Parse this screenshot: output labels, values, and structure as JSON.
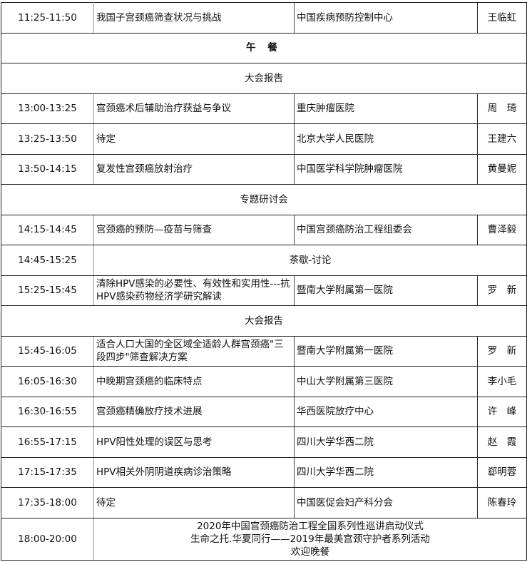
{
  "rows": [
    {
      "type": "talk",
      "time": "11:25-11:50",
      "topic": "我国子宫颈癌筛查状况与挑战",
      "institution": "中国疾病预防控制中心",
      "speaker": "王临虹"
    },
    {
      "type": "section",
      "label": "午 餐",
      "bold": true
    },
    {
      "type": "section",
      "label": "大会报告"
    },
    {
      "type": "talk",
      "time": "13:00-13:25",
      "topic": "宫颈癌术后辅助治疗获益与争议",
      "institution": "重庆肿瘤医院",
      "speaker": "周　琦"
    },
    {
      "type": "talk",
      "time": "13:25-13:50",
      "topic": "待定",
      "institution": "北京大学人民医院",
      "speaker": "王建六"
    },
    {
      "type": "talk",
      "time": "13:50-14:15",
      "topic": "复发性宫颈癌放射治疗",
      "institution": "中国医学科学院肿瘤医院",
      "speaker": "黄曼妮"
    },
    {
      "type": "section",
      "label": "专题研讨会"
    },
    {
      "type": "talk",
      "time": "14:15-14:45",
      "topic": "宫颈癌的预防—疫苗与筛查",
      "institution": "中国宫颈癌防治工程组委会",
      "speaker": "曹泽毅"
    },
    {
      "type": "break",
      "time": "14:45-15:25",
      "label": "茶歇-讨论"
    },
    {
      "type": "talk",
      "time": "15:25-15:45",
      "topic": "清除HPV感染的必要性、有效性和实用性---抗HPV感染药物经济学研究解读",
      "institution": "暨南大学附属第一医院",
      "speaker": "罗　新"
    },
    {
      "type": "section",
      "label": "大会报告"
    },
    {
      "type": "talk",
      "time": "15:45-16:05",
      "topic": "适合人口大国的全区域全适龄人群宫颈癌\"三段四步\"筛查解决方案",
      "institution": "暨南大学附属第一医院",
      "speaker": "罗　新"
    },
    {
      "type": "talk",
      "time": "16:05-16:30",
      "topic": "中晚期宫颈癌的临床特点",
      "institution": "中山大学附属第三医院",
      "speaker": "李小毛"
    },
    {
      "type": "talk",
      "time": "16:30-16:55",
      "topic": "宫颈癌精确放疗技术进展",
      "institution": "华西医院放疗中心",
      "speaker": "许　峰"
    },
    {
      "type": "talk",
      "time": "16:55-17:15",
      "topic": "HPV阳性处理的误区与思考",
      "institution": "四川大学华西二院",
      "speaker": "赵　霞"
    },
    {
      "type": "talk",
      "time": "17:15-17:35",
      "topic": "HPV相关外阴阴道疾病诊治策略",
      "institution": "四川大学华西二院",
      "speaker": "郄明蓉"
    },
    {
      "type": "talk",
      "time": "17:35-18:00",
      "topic": "待定",
      "institution": "中国医促会妇产科分会",
      "speaker": "陈春玲"
    },
    {
      "type": "multi",
      "time": "18:00-20:00",
      "lines": [
        "2020年中国宫颈癌防治工程全国系列性巡讲启动仪式",
        "生命之托.华夏同行——2019年最美宫颈守护者系列活动",
        "欢迎晚餐"
      ]
    }
  ]
}
